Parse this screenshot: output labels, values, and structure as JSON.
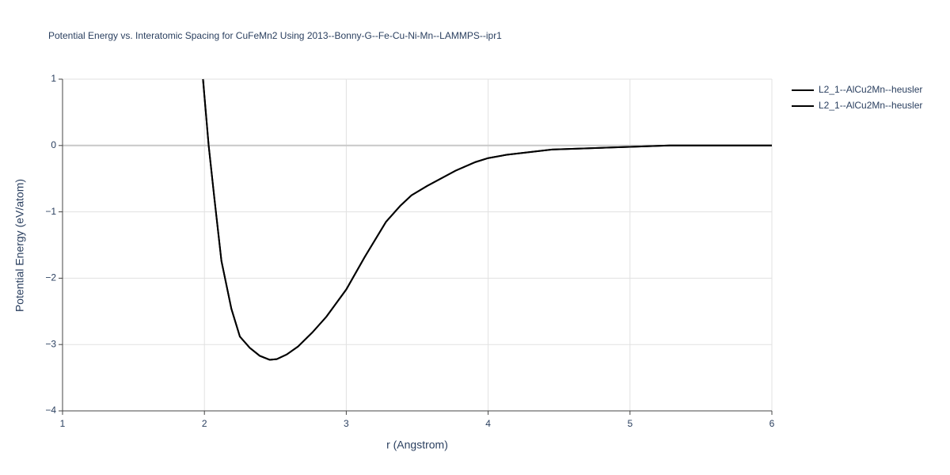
{
  "chart_data": {
    "type": "line",
    "title": "Potential Energy vs. Interatomic Spacing for CuFeMn2 Using 2013--Bonny-G--Fe-Cu-Ni-Mn--LAMMPS--ipr1",
    "x_label": "r (Angstrom)",
    "y_label": "Potential Energy (eV/atom)",
    "x": [
      1.99,
      2.03,
      2.07,
      2.12,
      2.19,
      2.25,
      2.32,
      2.39,
      2.46,
      2.51,
      2.58,
      2.66,
      2.76,
      2.86,
      3.0,
      3.13,
      3.28,
      3.38,
      3.46,
      3.57,
      3.77,
      3.91,
      4.0,
      4.13,
      4.45,
      5.0,
      5.28,
      6.0
    ],
    "series": [
      {
        "name": "L2_1--AlCu2Mn--heusler",
        "color": "#000000",
        "values": [
          1.0,
          0.0,
          -0.79,
          -1.74,
          -2.46,
          -2.88,
          -3.05,
          -3.17,
          -3.23,
          -3.22,
          -3.15,
          -3.03,
          -2.82,
          -2.58,
          -2.17,
          -1.68,
          -1.15,
          -0.91,
          -0.75,
          -0.61,
          -0.38,
          -0.25,
          -0.19,
          -0.14,
          -0.06,
          -0.02,
          0.0,
          0.0
        ]
      },
      {
        "name": "L2_1--AlCu2Mn--heusler",
        "color": "#000000",
        "values": [
          1.0,
          0.0,
          -0.79,
          -1.74,
          -2.46,
          -2.88,
          -3.05,
          -3.17,
          -3.23,
          -3.22,
          -3.15,
          -3.03,
          -2.82,
          -2.58,
          -2.17,
          -1.68,
          -1.15,
          -0.91,
          -0.75,
          -0.61,
          -0.38,
          -0.25,
          -0.19,
          -0.14,
          -0.06,
          -0.02,
          0.0,
          0.0
        ]
      }
    ],
    "xlim": [
      1,
      6
    ],
    "xticks": [
      1,
      2,
      3,
      4,
      5,
      6
    ],
    "ylim": [
      -4,
      1
    ],
    "yticks": [
      {
        "value": -4,
        "label": "−4"
      },
      {
        "value": -3,
        "label": "−3"
      },
      {
        "value": -2,
        "label": "−2"
      },
      {
        "value": -1,
        "label": "−1"
      },
      0,
      1
    ],
    "grid": true
  }
}
